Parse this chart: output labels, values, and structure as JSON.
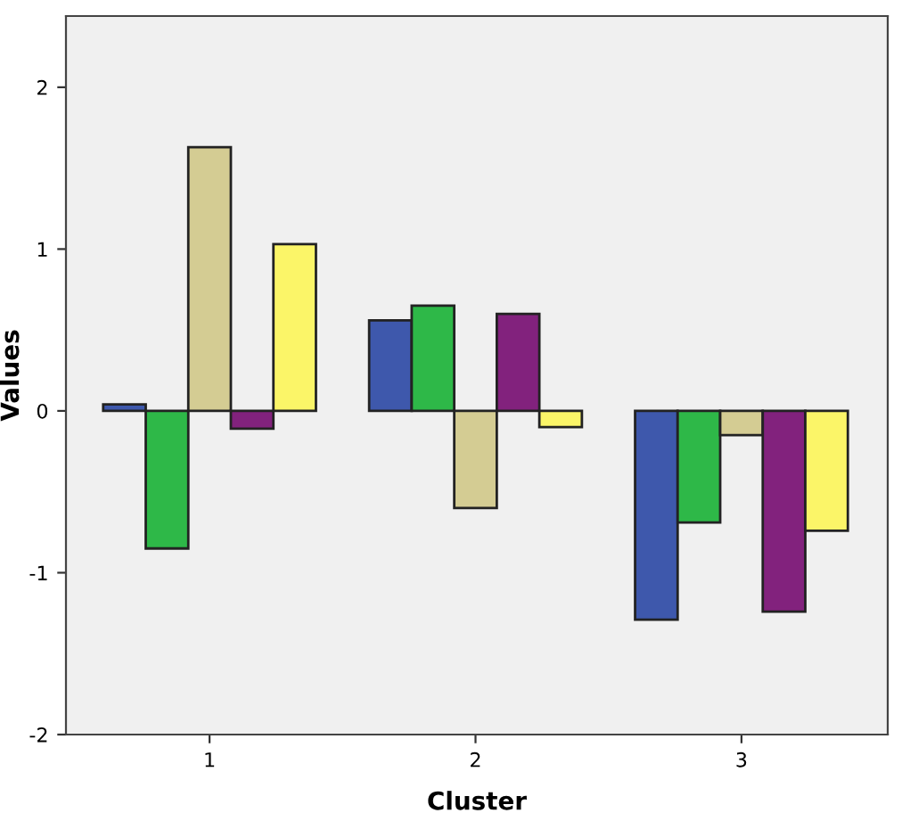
{
  "chart_data": {
    "type": "bar",
    "xlabel": "Cluster",
    "ylabel": "Values",
    "categories": [
      "1",
      "2",
      "3"
    ],
    "series": [
      {
        "color": "#3e58ac",
        "values": [
          0.04,
          0.56,
          -1.29
        ]
      },
      {
        "color": "#2eb848",
        "values": [
          -0.85,
          0.65,
          -0.69
        ]
      },
      {
        "color": "#d4cc93",
        "values": [
          1.63,
          -0.6,
          -0.15
        ]
      },
      {
        "color": "#82227d",
        "values": [
          -0.11,
          0.6,
          -1.24
        ]
      },
      {
        "color": "#fbf568",
        "values": [
          1.03,
          -0.1,
          -0.74
        ]
      }
    ],
    "ylim": [
      -2,
      2.44
    ],
    "yticks": [
      -2,
      -1,
      0,
      1,
      2
    ],
    "grid": false
  }
}
